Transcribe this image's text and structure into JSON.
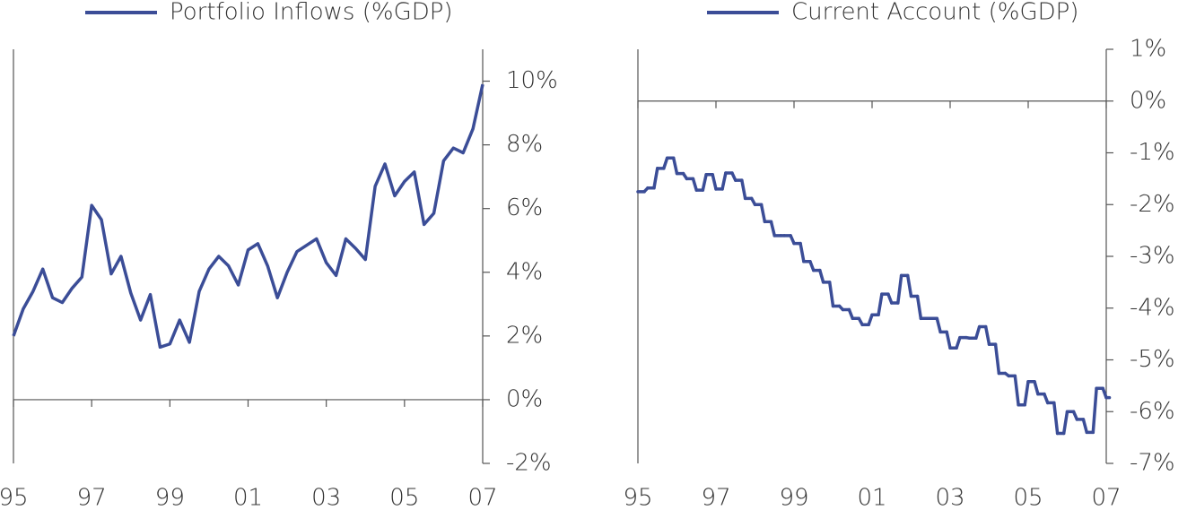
{
  "chart_data": [
    {
      "type": "line",
      "x": [
        1995,
        1995.25,
        1995.5,
        1995.75,
        1996,
        1996.25,
        1996.5,
        1996.75,
        1997,
        1997.25,
        1997.5,
        1997.75,
        1998,
        1998.25,
        1998.5,
        1998.75,
        1999,
        1999.25,
        1999.5,
        1999.75,
        2000,
        2000.25,
        2000.5,
        2000.75,
        2001,
        2001.25,
        2001.5,
        2001.75,
        2002,
        2002.25,
        2002.5,
        2002.75,
        2003,
        2003.25,
        2003.5,
        2003.75,
        2004,
        2004.25,
        2004.5,
        2004.75,
        2005,
        2005.25,
        2005.5,
        2005.75,
        2006,
        2006.25,
        2006.5,
        2006.75,
        2007
      ],
      "series": [
        {
          "name": "Portfolio Inflows (%GDP)",
          "color": "#3b4d97",
          "values": [
            2.0,
            2.85,
            3.4,
            4.1,
            3.2,
            3.05,
            3.5,
            3.85,
            6.1,
            5.65,
            3.95,
            4.5,
            3.35,
            2.5,
            3.3,
            1.65,
            1.75,
            2.5,
            1.8,
            3.4,
            4.1,
            4.5,
            4.2,
            3.6,
            4.7,
            4.9,
            4.2,
            3.2,
            4.0,
            4.65,
            4.85,
            5.05,
            4.3,
            3.9,
            5.05,
            4.75,
            4.4,
            6.7,
            7.4,
            6.4,
            6.85,
            7.15,
            5.5,
            5.85,
            7.5,
            7.9,
            7.75,
            8.5,
            9.9
          ]
        }
      ],
      "xlim": [
        1995,
        2007
      ],
      "xticks": [
        {
          "value": 1995,
          "label": "95"
        },
        {
          "value": 1997,
          "label": "97"
        },
        {
          "value": 1999,
          "label": "99"
        },
        {
          "value": 2001,
          "label": "01"
        },
        {
          "value": 2003,
          "label": "03"
        },
        {
          "value": 2005,
          "label": "05"
        },
        {
          "value": 2007,
          "label": "07"
        }
      ],
      "ylim": [
        -2,
        11
      ],
      "yticks": [
        {
          "value": -2,
          "label": "-2%"
        },
        {
          "value": 0,
          "label": "0%"
        },
        {
          "value": 2,
          "label": "2%"
        },
        {
          "value": 4,
          "label": "4%"
        },
        {
          "value": 6,
          "label": "6%"
        },
        {
          "value": 8,
          "label": "8%"
        },
        {
          "value": 10,
          "label": "10%"
        }
      ]
    },
    {
      "type": "step",
      "x": [
        1995,
        1995.25,
        1995.5,
        1995.75,
        1996,
        1996.25,
        1996.5,
        1996.75,
        1997,
        1997.25,
        1997.5,
        1997.75,
        1998,
        1998.25,
        1998.5,
        1998.75,
        1999,
        1999.25,
        1999.5,
        1999.75,
        2000,
        2000.25,
        2000.5,
        2000.75,
        2001,
        2001.25,
        2001.5,
        2001.75,
        2002,
        2002.25,
        2002.5,
        2002.75,
        2003,
        2003.25,
        2003.5,
        2003.75,
        2004,
        2004.25,
        2004.5,
        2004.75,
        2005,
        2005.25,
        2005.5,
        2005.75,
        2006,
        2006.25,
        2006.5,
        2006.75,
        2007
      ],
      "series": [
        {
          "name": "Current Account (%GDP)",
          "color": "#3b4d97",
          "values": [
            -1.75,
            -1.68,
            -1.3,
            -1.1,
            -1.4,
            -1.5,
            -1.72,
            -1.42,
            -1.7,
            -1.39,
            -1.53,
            -1.88,
            -2.0,
            -2.33,
            -2.6,
            -2.6,
            -2.75,
            -3.1,
            -3.27,
            -3.5,
            -3.96,
            -4.03,
            -4.2,
            -4.32,
            -4.13,
            -3.73,
            -3.9,
            -3.37,
            -3.77,
            -4.2,
            -4.2,
            -4.46,
            -4.77,
            -4.57,
            -4.58,
            -4.36,
            -4.7,
            -5.26,
            -5.31,
            -5.87,
            -5.42,
            -5.66,
            -5.83,
            -6.42,
            -6.0,
            -6.15,
            -6.4,
            -5.55,
            -5.73
          ]
        }
      ],
      "xlim": [
        1995,
        2007
      ],
      "xticks": [
        {
          "value": 1995,
          "label": "95"
        },
        {
          "value": 1997,
          "label": "97"
        },
        {
          "value": 1999,
          "label": "99"
        },
        {
          "value": 2001,
          "label": "01"
        },
        {
          "value": 2003,
          "label": "03"
        },
        {
          "value": 2005,
          "label": "05"
        },
        {
          "value": 2007,
          "label": "07"
        }
      ],
      "ylim": [
        -7,
        1
      ],
      "yticks": [
        {
          "value": -7,
          "label": "-7%"
        },
        {
          "value": -6,
          "label": "-6%"
        },
        {
          "value": -5,
          "label": "-5%"
        },
        {
          "value": -4,
          "label": "-4%"
        },
        {
          "value": -3,
          "label": "-3%"
        },
        {
          "value": -2,
          "label": "-2%"
        },
        {
          "value": -1,
          "label": "-1%"
        },
        {
          "value": 0,
          "label": "0%"
        },
        {
          "value": 1,
          "label": "1%"
        }
      ]
    }
  ]
}
